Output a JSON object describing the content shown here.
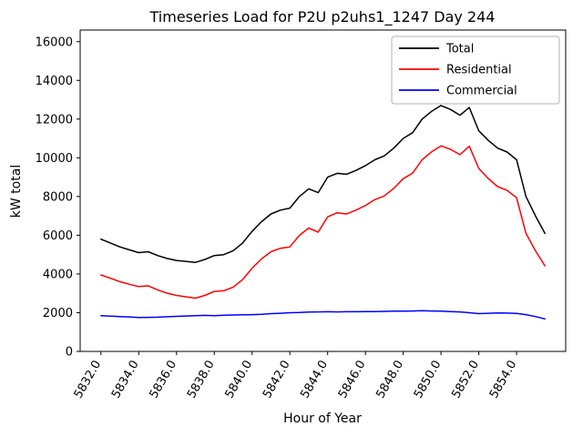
{
  "chart_data": {
    "type": "line",
    "title": "Timeseries Load for P2U p2uhs1_1247  Day 244",
    "xlabel": "Hour of Year",
    "ylabel": "kW total",
    "grid": false,
    "legend_position": "upper right",
    "xlim": [
      5830.9,
      5856.6
    ],
    "ylim": [
      0,
      16600
    ],
    "xticks": [
      5832,
      5834,
      5836,
      5838,
      5840,
      5842,
      5844,
      5846,
      5848,
      5850,
      5852,
      5854
    ],
    "xtick_labels": [
      "5832.0",
      "5834.0",
      "5836.0",
      "5838.0",
      "5840.0",
      "5842.0",
      "5844.0",
      "5846.0",
      "5848.0",
      "5850.0",
      "5852.0",
      "5854.0"
    ],
    "yticks": [
      0,
      2000,
      4000,
      6000,
      8000,
      10000,
      12000,
      14000,
      16000
    ],
    "x": [
      5832.0,
      5832.5,
      5833.0,
      5833.5,
      5834.0,
      5834.5,
      5835.0,
      5835.5,
      5836.0,
      5836.5,
      5837.0,
      5837.5,
      5838.0,
      5838.5,
      5839.0,
      5839.5,
      5840.0,
      5840.5,
      5841.0,
      5841.5,
      5842.0,
      5842.5,
      5843.0,
      5843.5,
      5844.0,
      5844.5,
      5845.0,
      5845.5,
      5846.0,
      5846.5,
      5847.0,
      5847.5,
      5848.0,
      5848.5,
      5849.0,
      5849.5,
      5850.0,
      5850.5,
      5851.0,
      5851.5,
      5852.0,
      5852.5,
      5853.0,
      5853.5,
      5854.0,
      5854.5,
      5855.0,
      5855.5
    ],
    "series": [
      {
        "name": "Total",
        "color": "#000000",
        "values": [
          5800,
          5600,
          5400,
          5250,
          5100,
          5150,
          4950,
          4800,
          4700,
          4650,
          4600,
          4750,
          4950,
          5000,
          5200,
          5600,
          6200,
          6700,
          7100,
          7300,
          7400,
          8000,
          8400,
          8200,
          9000,
          9200,
          9150,
          9350,
          9600,
          9900,
          10100,
          10500,
          11000,
          11300,
          12000,
          12400,
          12700,
          12500,
          12200,
          12600,
          11400,
          10900,
          10500,
          10300,
          9900,
          8000,
          7000,
          6100
        ]
      },
      {
        "name": "Residential",
        "color": "#ff0000",
        "values": [
          3950,
          3780,
          3600,
          3470,
          3350,
          3390,
          3180,
          3010,
          2890,
          2820,
          2750,
          2890,
          3100,
          3130,
          3320,
          3710,
          4300,
          4780,
          5150,
          5330,
          5400,
          5990,
          6370,
          6160,
          6950,
          7160,
          7100,
          7300,
          7540,
          7840,
          8030,
          8420,
          8920,
          9210,
          9900,
          10310,
          10620,
          10440,
          10160,
          10600,
          9450,
          8930,
          8510,
          8320,
          7940,
          6100,
          5200,
          4420
        ]
      },
      {
        "name": "Commercial",
        "color": "#0000ff",
        "values": [
          1850,
          1820,
          1800,
          1780,
          1750,
          1760,
          1770,
          1790,
          1810,
          1830,
          1850,
          1860,
          1850,
          1870,
          1880,
          1890,
          1900,
          1920,
          1950,
          1970,
          2000,
          2010,
          2030,
          2040,
          2050,
          2040,
          2050,
          2050,
          2060,
          2060,
          2070,
          2080,
          2080,
          2090,
          2100,
          2090,
          2080,
          2060,
          2040,
          2000,
          1950,
          1970,
          1990,
          1980,
          1960,
          1900,
          1800,
          1680
        ]
      }
    ]
  }
}
